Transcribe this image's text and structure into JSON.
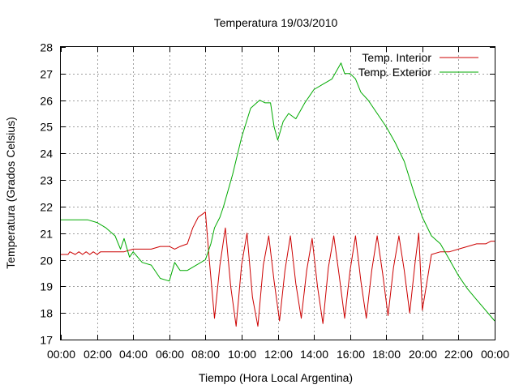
{
  "chart_data": {
    "type": "line",
    "title": "Temperatura 19/03/2010",
    "xlabel": "Tiempo (Hora Local Argentina)",
    "ylabel": "Temperatura (Grados Celsius)",
    "xlim": [
      0,
      24
    ],
    "ylim": [
      17,
      28
    ],
    "x_ticks": [
      "00:00",
      "02:00",
      "04:00",
      "06:00",
      "08:00",
      "10:00",
      "12:00",
      "14:00",
      "16:00",
      "18:00",
      "20:00",
      "22:00",
      "00:00"
    ],
    "y_ticks": [
      "17",
      "18",
      "19",
      "20",
      "21",
      "22",
      "23",
      "24",
      "25",
      "26",
      "27",
      "28"
    ],
    "grid": true,
    "legend_position": "top-right",
    "series": [
      {
        "name": "Temp. Interior",
        "color": "#cc0000",
        "x": [
          0.0,
          0.4,
          0.5,
          0.8,
          1.0,
          1.2,
          1.4,
          1.6,
          1.8,
          2.0,
          2.2,
          2.5,
          3.0,
          3.5,
          4.0,
          4.5,
          5.0,
          5.5,
          6.0,
          6.3,
          6.6,
          7.0,
          7.3,
          7.6,
          7.8,
          8.0,
          8.2,
          8.5,
          8.8,
          9.1,
          9.4,
          9.7,
          10.0,
          10.3,
          10.6,
          10.9,
          11.2,
          11.5,
          11.8,
          12.1,
          12.4,
          12.7,
          13.0,
          13.3,
          13.6,
          13.9,
          14.2,
          14.5,
          14.8,
          15.1,
          15.4,
          15.7,
          16.0,
          16.3,
          16.6,
          16.9,
          17.2,
          17.5,
          17.8,
          18.1,
          18.4,
          18.7,
          19.0,
          19.3,
          19.6,
          19.8,
          20.0,
          20.5,
          21.0,
          21.5,
          22.0,
          22.5,
          23.0,
          23.5,
          23.8,
          24.0
        ],
        "y": [
          20.2,
          20.2,
          20.3,
          20.2,
          20.3,
          20.2,
          20.3,
          20.2,
          20.3,
          20.2,
          20.3,
          20.3,
          20.3,
          20.3,
          20.4,
          20.4,
          20.4,
          20.5,
          20.5,
          20.4,
          20.5,
          20.6,
          21.2,
          21.6,
          21.7,
          21.8,
          20.1,
          17.8,
          19.8,
          21.2,
          19.0,
          17.5,
          19.8,
          21.0,
          18.6,
          17.5,
          19.8,
          20.9,
          19.2,
          17.7,
          19.6,
          20.9,
          19.1,
          17.8,
          19.6,
          20.8,
          19.0,
          17.6,
          19.7,
          20.9,
          19.4,
          17.8,
          19.6,
          20.9,
          19.2,
          17.8,
          19.6,
          20.9,
          19.5,
          17.9,
          19.7,
          20.9,
          19.6,
          18.0,
          19.9,
          21.0,
          18.1,
          20.2,
          20.3,
          20.3,
          20.4,
          20.5,
          20.6,
          20.6,
          20.7,
          20.7
        ]
      },
      {
        "name": "Temp. Exterior",
        "color": "#00aa00",
        "x": [
          0.0,
          0.5,
          1.0,
          1.5,
          2.0,
          2.5,
          3.0,
          3.3,
          3.5,
          3.8,
          4.0,
          4.5,
          5.0,
          5.5,
          6.0,
          6.3,
          6.6,
          7.0,
          7.5,
          8.0,
          8.3,
          8.5,
          8.8,
          9.0,
          9.5,
          10.0,
          10.5,
          11.0,
          11.3,
          11.6,
          11.8,
          12.0,
          12.3,
          12.6,
          13.0,
          13.5,
          14.0,
          14.5,
          15.0,
          15.5,
          15.7,
          16.0,
          16.3,
          16.6,
          17.0,
          17.5,
          18.0,
          18.5,
          19.0,
          19.5,
          20.0,
          20.5,
          21.0,
          21.5,
          22.0,
          22.5,
          23.0,
          23.5,
          24.0
        ],
        "y": [
          21.5,
          21.5,
          21.5,
          21.5,
          21.4,
          21.2,
          20.9,
          20.4,
          20.8,
          20.1,
          20.3,
          19.9,
          19.8,
          19.3,
          19.2,
          19.9,
          19.6,
          19.6,
          19.8,
          20.0,
          20.6,
          21.2,
          21.6,
          22.0,
          23.2,
          24.6,
          25.7,
          26.0,
          25.9,
          25.9,
          25.0,
          24.5,
          25.2,
          25.5,
          25.3,
          25.9,
          26.4,
          26.6,
          26.8,
          27.4,
          27.0,
          27.0,
          26.8,
          26.3,
          26.0,
          25.5,
          25.0,
          24.4,
          23.7,
          22.6,
          21.6,
          20.9,
          20.6,
          20.0,
          19.4,
          18.9,
          18.5,
          18.1,
          17.7
        ]
      }
    ]
  }
}
